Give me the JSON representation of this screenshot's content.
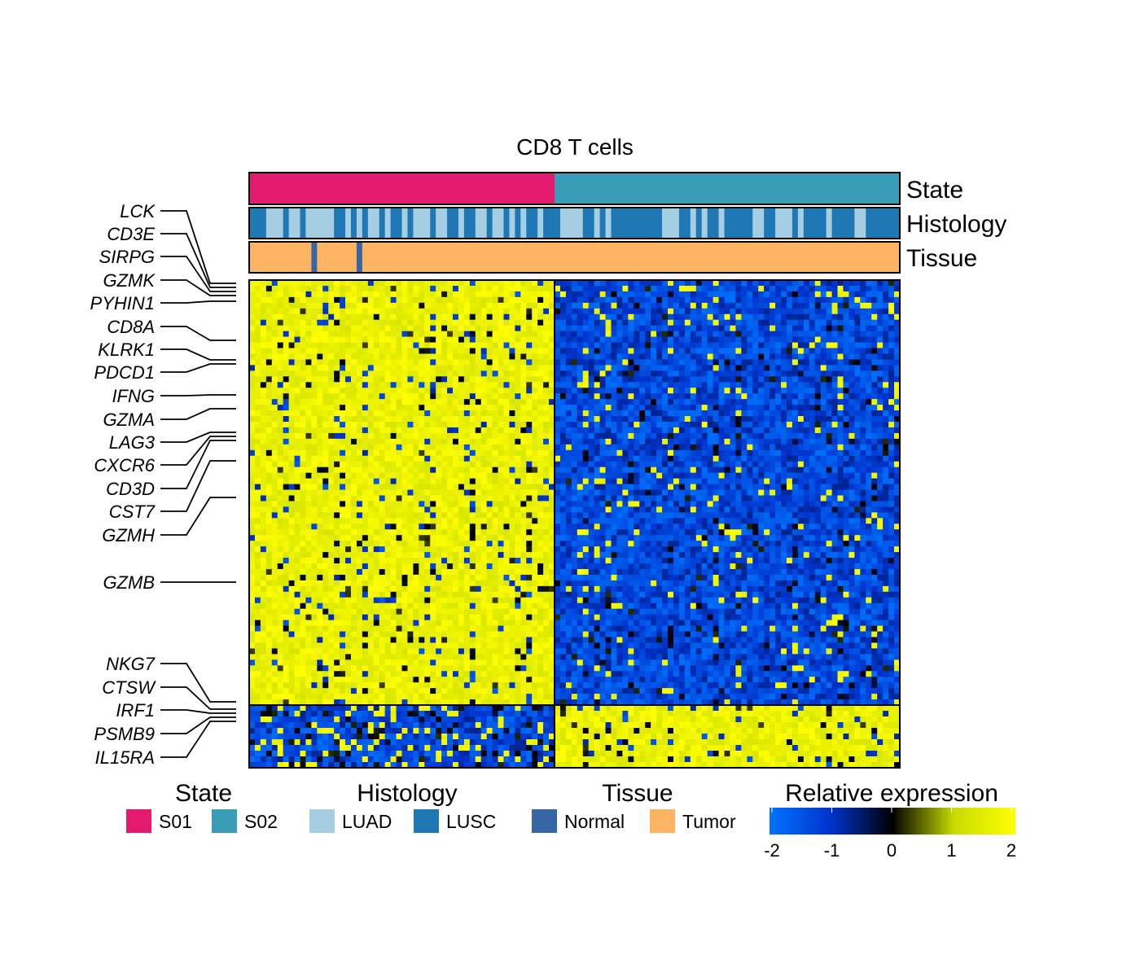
{
  "chart_data": {
    "type": "heatmap",
    "title": "CD8 T cells",
    "annotation_tracks": [
      {
        "name": "State",
        "label": "State"
      },
      {
        "name": "Histology",
        "label": "Histology"
      },
      {
        "name": "Tissue",
        "label": "Tissue"
      }
    ],
    "column_groups": [
      {
        "state": "S01",
        "approx_columns": 54
      },
      {
        "state": "S02",
        "approx_columns": 61
      }
    ],
    "row_groups": [
      {
        "name": "upper block",
        "pattern": "high in S01 (yellow), low in S02 (blue)",
        "approx_rows": 75
      },
      {
        "name": "lower block",
        "pattern": "low in S01 (blue), high in S02 (yellow)",
        "approx_rows": 11
      }
    ],
    "labeled_genes": [
      "LCK",
      "CD3E",
      "SIRPG",
      "GZMK",
      "PYHIN1",
      "CD8A",
      "KLRK1",
      "PDCD1",
      "IFNG",
      "GZMA",
      "LAG3",
      "CXCR6",
      "CD3D",
      "CST7",
      "GZMH",
      "GZMB",
      "NKG7",
      "CTSW",
      "IRF1",
      "PSMB9",
      "IL15RA"
    ],
    "legends": [
      {
        "title": "State",
        "items": [
          {
            "label": "S01",
            "color": "#E31A6E"
          },
          {
            "label": "S02",
            "color": "#3A9DB8"
          }
        ]
      },
      {
        "title": "Histology",
        "items": [
          {
            "label": "LUAD",
            "color": "#A6CEE3"
          },
          {
            "label": "LUSC",
            "color": "#1F78B4"
          }
        ]
      },
      {
        "title": "Tissue",
        "items": [
          {
            "label": "Normal",
            "color": "#3666A6"
          },
          {
            "label": "Tumor",
            "color": "#FDB462"
          }
        ]
      }
    ],
    "color_scale": {
      "title": "Relative expression",
      "min": -2,
      "max": 2,
      "ticks": [
        "-2",
        "-1",
        "0",
        "1",
        "2"
      ],
      "stops": [
        {
          "value": -2,
          "color": "#0074FF"
        },
        {
          "value": -1,
          "color": "#0033CC"
        },
        {
          "value": 0,
          "color": "#000000"
        },
        {
          "value": 1,
          "color": "#C8DC00"
        },
        {
          "value": 2,
          "color": "#FFFF00"
        }
      ]
    }
  }
}
